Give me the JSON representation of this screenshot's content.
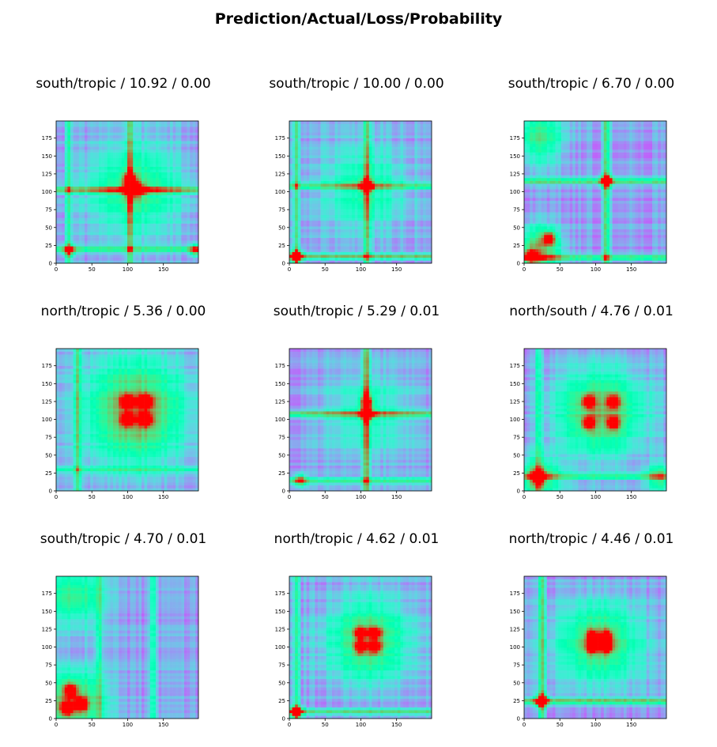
{
  "figure": {
    "title": "Prediction/Actual/Loss/Probability"
  },
  "chart_data": [
    {
      "type": "heatmap",
      "title": "south/tropic / 10.92 / 0.00",
      "xlim": [
        0,
        199
      ],
      "ylim": [
        0,
        199
      ],
      "x_ticks": [
        0,
        50,
        100,
        150
      ],
      "y_ticks": [
        0,
        25,
        50,
        75,
        100,
        125,
        150,
        175
      ],
      "colormap": "rainbow",
      "hotspots": [
        {
          "x": 103,
          "y": 103,
          "level": 0.95
        },
        {
          "x": 115,
          "y": 103,
          "level": 0.75
        },
        {
          "x": 103,
          "y": 118,
          "level": 0.7
        },
        {
          "x": 18,
          "y": 18,
          "level": 0.55
        },
        {
          "x": 195,
          "y": 18,
          "level": 0.55
        }
      ],
      "blobs": [
        {
          "x": 110,
          "y": 105,
          "level": 0.4,
          "spread": 45
        }
      ],
      "lines": [
        {
          "axis": "y",
          "at": 103,
          "level": 0.55
        },
        {
          "axis": "x",
          "at": 103,
          "level": 0.5
        },
        {
          "axis": "y",
          "at": 20,
          "level": 0.4
        },
        {
          "axis": "x",
          "at": 18,
          "level": 0.3
        }
      ]
    },
    {
      "type": "heatmap",
      "title": "south/tropic / 10.00 / 0.00",
      "xlim": [
        0,
        199
      ],
      "ylim": [
        0,
        199
      ],
      "x_ticks": [
        0,
        50,
        100,
        150
      ],
      "y_ticks": [
        0,
        25,
        50,
        75,
        100,
        125,
        150,
        175
      ],
      "colormap": "rainbow",
      "hotspots": [
        {
          "x": 10,
          "y": 10,
          "level": 0.85
        },
        {
          "x": 108,
          "y": 108,
          "level": 0.7
        }
      ],
      "blobs": [
        {
          "x": 105,
          "y": 105,
          "level": 0.3,
          "spread": 40
        }
      ],
      "lines": [
        {
          "axis": "x",
          "at": 108,
          "level": 0.45
        },
        {
          "axis": "y",
          "at": 10,
          "level": 0.45
        },
        {
          "axis": "x",
          "at": 10,
          "level": 0.4
        },
        {
          "axis": "y",
          "at": 108,
          "level": 0.4
        }
      ]
    },
    {
      "type": "heatmap",
      "title": "south/tropic / 6.70 / 0.00",
      "xlim": [
        0,
        199
      ],
      "ylim": [
        0,
        199
      ],
      "x_ticks": [
        0,
        50,
        100,
        150
      ],
      "y_ticks": [
        0,
        25,
        50,
        75,
        100,
        125,
        150,
        175
      ],
      "colormap": "rainbow",
      "hotspots": [
        {
          "x": 10,
          "y": 10,
          "level": 0.75
        },
        {
          "x": 35,
          "y": 35,
          "level": 0.7
        },
        {
          "x": 115,
          "y": 115,
          "level": 0.75
        }
      ],
      "blobs": [
        {
          "x": 20,
          "y": 20,
          "level": 0.55,
          "spread": 22
        },
        {
          "x": 20,
          "y": 175,
          "level": 0.4,
          "spread": 25
        }
      ],
      "lines": [
        {
          "axis": "x",
          "at": 115,
          "level": 0.5
        },
        {
          "axis": "y",
          "at": 115,
          "level": 0.45
        },
        {
          "axis": "y",
          "at": 8,
          "level": 0.45
        }
      ]
    },
    {
      "type": "heatmap",
      "title": "north/tropic / 5.36 / 0.00",
      "xlim": [
        0,
        199
      ],
      "ylim": [
        0,
        199
      ],
      "x_ticks": [
        0,
        50,
        100,
        150
      ],
      "y_ticks": [
        0,
        25,
        50,
        75,
        100,
        125,
        150,
        175
      ],
      "colormap": "rainbow",
      "hotspots": [
        {
          "x": 125,
          "y": 125,
          "level": 0.95
        },
        {
          "x": 100,
          "y": 125,
          "level": 0.85
        },
        {
          "x": 125,
          "y": 100,
          "level": 0.85
        },
        {
          "x": 100,
          "y": 100,
          "level": 0.8
        }
      ],
      "blobs": [
        {
          "x": 112,
          "y": 112,
          "level": 0.62,
          "spread": 48
        }
      ],
      "lines": [
        {
          "axis": "x",
          "at": 30,
          "level": 0.35
        },
        {
          "axis": "y",
          "at": 30,
          "level": 0.3
        }
      ]
    },
    {
      "type": "heatmap",
      "title": "south/tropic / 5.29 / 0.01",
      "xlim": [
        0,
        199
      ],
      "ylim": [
        0,
        199
      ],
      "x_ticks": [
        0,
        50,
        100,
        150
      ],
      "y_ticks": [
        0,
        25,
        50,
        75,
        100,
        125,
        150,
        175
      ],
      "colormap": "rainbow",
      "hotspots": [
        {
          "x": 108,
          "y": 108,
          "level": 0.75
        },
        {
          "x": 108,
          "y": 125,
          "level": 0.7
        },
        {
          "x": 15,
          "y": 15,
          "level": 0.55
        }
      ],
      "blobs": [
        {
          "x": 110,
          "y": 110,
          "level": 0.25,
          "spread": 40
        }
      ],
      "lines": [
        {
          "axis": "x",
          "at": 108,
          "level": 0.55
        },
        {
          "axis": "y",
          "at": 108,
          "level": 0.5
        },
        {
          "axis": "y",
          "at": 15,
          "level": 0.35
        }
      ]
    },
    {
      "type": "heatmap",
      "title": "north/south / 4.76 / 0.01",
      "xlim": [
        0,
        199
      ],
      "ylim": [
        0,
        199
      ],
      "x_ticks": [
        0,
        50,
        100,
        150
      ],
      "y_ticks": [
        0,
        25,
        50,
        75,
        100,
        125,
        150,
        175
      ],
      "colormap": "rainbow",
      "hotspots": [
        {
          "x": 20,
          "y": 20,
          "level": 0.9
        },
        {
          "x": 90,
          "y": 125,
          "level": 0.7
        },
        {
          "x": 125,
          "y": 125,
          "level": 0.7
        },
        {
          "x": 90,
          "y": 95,
          "level": 0.7
        },
        {
          "x": 125,
          "y": 95,
          "level": 0.7
        }
      ],
      "blobs": [
        {
          "x": 108,
          "y": 110,
          "level": 0.55,
          "spread": 42
        },
        {
          "x": 20,
          "y": 20,
          "level": 0.5,
          "spread": 20
        },
        {
          "x": 190,
          "y": 20,
          "level": 0.4,
          "spread": 14
        }
      ],
      "lines": [
        {
          "axis": "y",
          "at": 20,
          "level": 0.35
        },
        {
          "axis": "x",
          "at": 20,
          "level": 0.3
        }
      ]
    },
    {
      "type": "heatmap",
      "title": "south/tropic / 4.70 / 0.01",
      "xlim": [
        0,
        199
      ],
      "ylim": [
        0,
        199
      ],
      "x_ticks": [
        0,
        50,
        100,
        150
      ],
      "y_ticks": [
        0,
        25,
        50,
        75,
        100,
        125,
        150,
        175
      ],
      "colormap": "rainbow",
      "hotspots": [
        {
          "x": 15,
          "y": 15,
          "level": 0.8
        },
        {
          "x": 35,
          "y": 20,
          "level": 0.75
        },
        {
          "x": 20,
          "y": 40,
          "level": 0.7
        }
      ],
      "blobs": [
        {
          "x": 25,
          "y": 25,
          "level": 0.6,
          "spread": 28
        },
        {
          "x": 25,
          "y": 170,
          "level": 0.4,
          "spread": 28
        }
      ],
      "lines": [
        {
          "axis": "x",
          "at": 60,
          "level": 0.3
        },
        {
          "axis": "x",
          "at": 135,
          "level": 0.3
        }
      ]
    },
    {
      "type": "heatmap",
      "title": "north/tropic / 4.62 / 0.01",
      "xlim": [
        0,
        199
      ],
      "ylim": [
        0,
        199
      ],
      "x_ticks": [
        0,
        50,
        100,
        150
      ],
      "y_ticks": [
        0,
        25,
        50,
        75,
        100,
        125,
        150,
        175
      ],
      "colormap": "rainbow",
      "hotspots": [
        {
          "x": 10,
          "y": 10,
          "level": 0.85
        },
        {
          "x": 100,
          "y": 120,
          "level": 0.65
        },
        {
          "x": 120,
          "y": 120,
          "level": 0.65
        },
        {
          "x": 100,
          "y": 100,
          "level": 0.65
        },
        {
          "x": 120,
          "y": 100,
          "level": 0.65
        }
      ],
      "blobs": [
        {
          "x": 110,
          "y": 110,
          "level": 0.48,
          "spread": 40
        }
      ],
      "lines": [
        {
          "axis": "y",
          "at": 10,
          "level": 0.4
        },
        {
          "axis": "x",
          "at": 10,
          "level": 0.35
        }
      ]
    },
    {
      "type": "heatmap",
      "title": "north/tropic / 4.46 / 0.01",
      "xlim": [
        0,
        199
      ],
      "ylim": [
        0,
        199
      ],
      "x_ticks": [
        0,
        50,
        100,
        150
      ],
      "y_ticks": [
        0,
        25,
        50,
        75,
        100,
        125,
        150,
        175
      ],
      "colormap": "rainbow",
      "hotspots": [
        {
          "x": 25,
          "y": 25,
          "level": 0.9
        },
        {
          "x": 95,
          "y": 115,
          "level": 0.7
        },
        {
          "x": 115,
          "y": 115,
          "level": 0.7
        },
        {
          "x": 95,
          "y": 100,
          "level": 0.7
        },
        {
          "x": 115,
          "y": 100,
          "level": 0.7
        }
      ],
      "blobs": [
        {
          "x": 105,
          "y": 108,
          "level": 0.5,
          "spread": 38
        }
      ],
      "lines": [
        {
          "axis": "y",
          "at": 25,
          "level": 0.5
        },
        {
          "axis": "x",
          "at": 25,
          "level": 0.45
        }
      ]
    }
  ]
}
